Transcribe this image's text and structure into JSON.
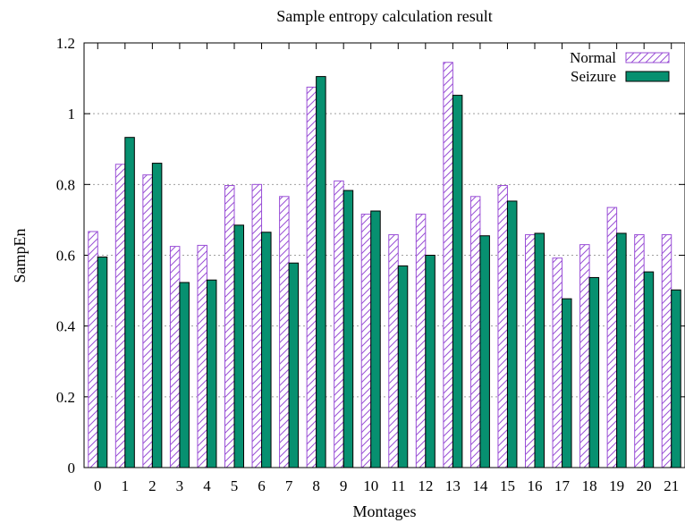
{
  "chart_data": {
    "type": "bar",
    "title": "Sample entropy calculation result",
    "xlabel": "Montages",
    "ylabel": "SampEn",
    "ylim": [
      0,
      1.2
    ],
    "yticks": [
      0,
      0.2,
      0.4,
      0.6,
      0.8,
      1,
      1.2
    ],
    "ytick_labels": [
      "0",
      "0.2",
      "0.4",
      "0.6",
      "0.8",
      "1",
      "1.2"
    ],
    "grid": "horizontal dashed",
    "legend_position": "top-right",
    "categories": [
      "0",
      "1",
      "2",
      "3",
      "4",
      "5",
      "6",
      "7",
      "8",
      "9",
      "10",
      "11",
      "12",
      "13",
      "14",
      "15",
      "16",
      "17",
      "18",
      "19",
      "20",
      "21"
    ],
    "series": [
      {
        "name": "Normal",
        "style": "hatched",
        "color": "#9a4fd6",
        "values": [
          0.667,
          0.857,
          0.827,
          0.625,
          0.628,
          0.797,
          0.8,
          0.766,
          1.075,
          0.81,
          0.716,
          0.658,
          0.716,
          1.145,
          0.766,
          0.797,
          0.658,
          0.592,
          0.63,
          0.735,
          0.658,
          0.658
        ]
      },
      {
        "name": "Seizure",
        "style": "solid",
        "color": "#079070",
        "values": [
          0.595,
          0.933,
          0.86,
          0.523,
          0.53,
          0.685,
          0.665,
          0.578,
          1.105,
          0.783,
          0.725,
          0.57,
          0.6,
          1.052,
          0.655,
          0.753,
          0.662,
          0.477,
          0.537,
          0.662,
          0.553,
          0.502
        ]
      }
    ]
  }
}
